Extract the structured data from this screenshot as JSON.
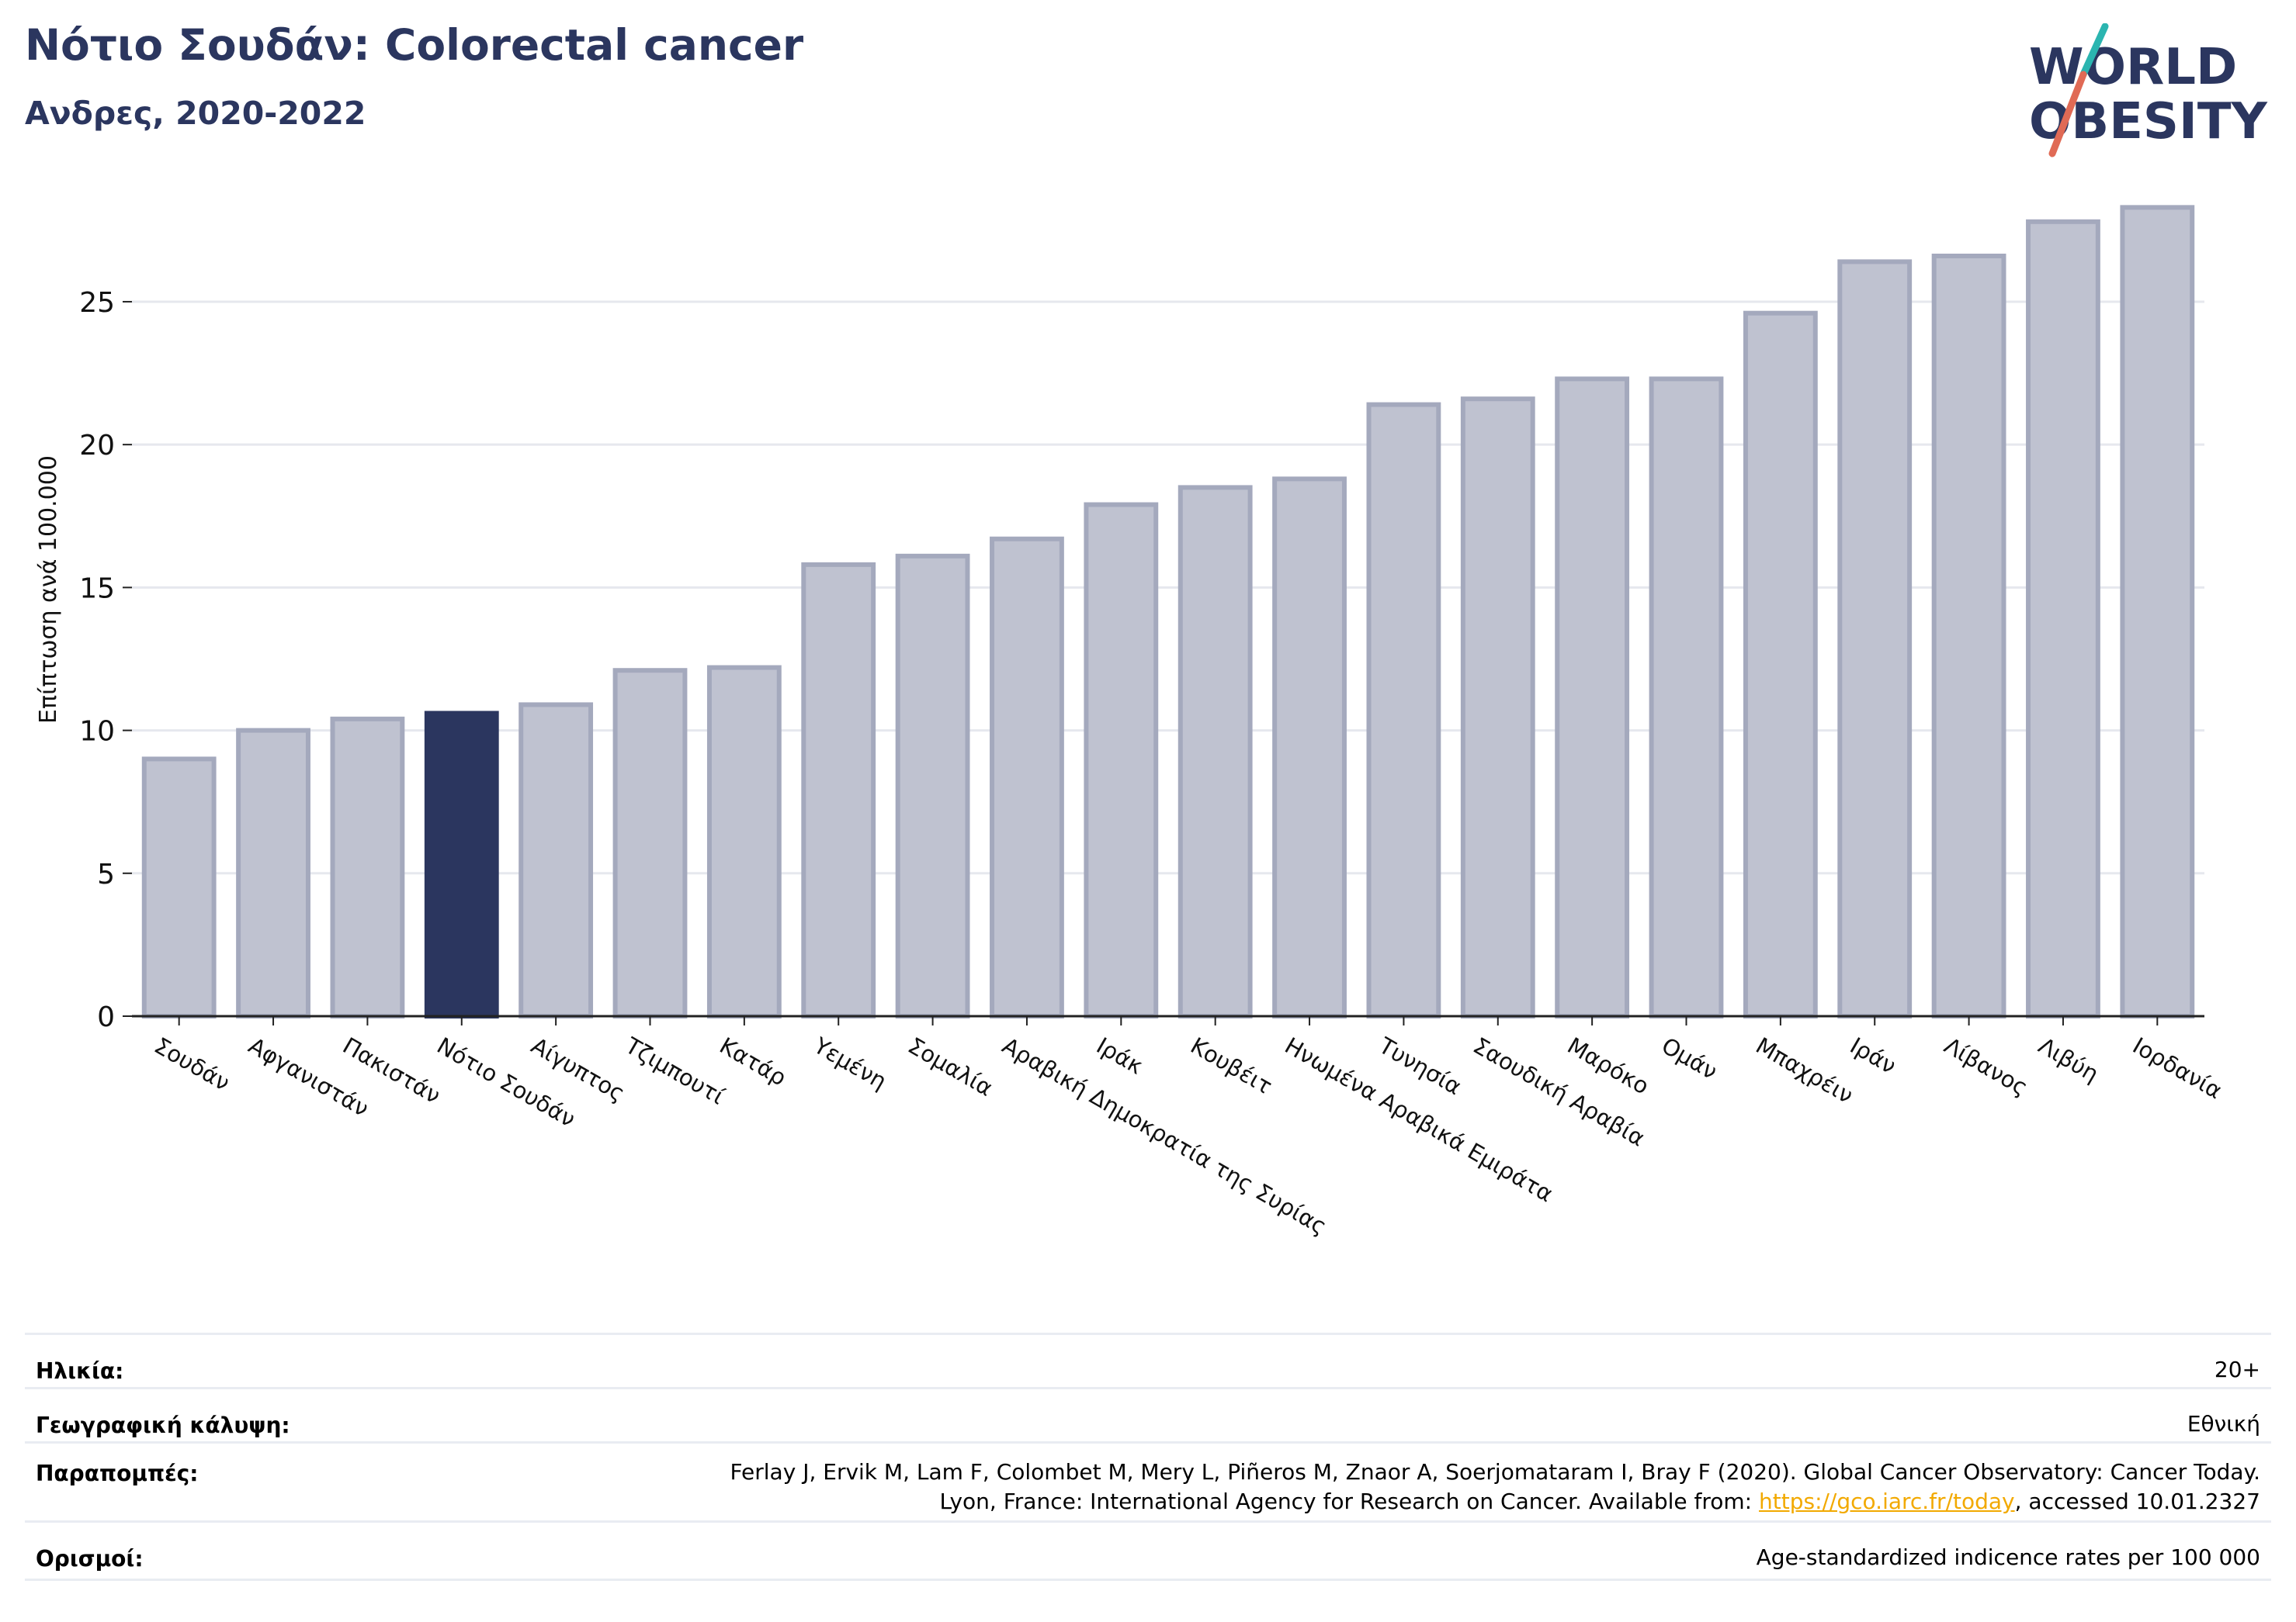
{
  "title": "Νότιο Σουδάν: Colorectal cancer",
  "subtitle": "Ανδρες, 2020-2022",
  "logo": {
    "line1": "WORLD",
    "line2": "OBESITY",
    "icon": "world-obesity-logo"
  },
  "colors": {
    "highlight": "#2b365f",
    "bar": "#bfc2d0",
    "bar_border": "#a4a9bd",
    "title": "#2b365f",
    "slash_teal": "#2bb5b0",
    "slash_red": "#e06a55"
  },
  "chart_data": {
    "type": "bar",
    "ylabel": "Επίπτωση ανά 100.000",
    "ylim": [
      0,
      28.5
    ],
    "yticks": [
      0,
      5,
      10,
      15,
      20,
      25
    ],
    "grid": true,
    "highlight": "Νότιο Σουδάν",
    "categories": [
      "Σουδάν",
      "Αφγανιστάν",
      "Πακιστάν",
      "Νότιο Σουδάν",
      "Αίγυπτος",
      "Τζιμπουτί",
      "Κατάρ",
      "Υεμένη",
      "Σομαλία",
      "Αραβική Δημοκρατία της Συρίας",
      "Ιράκ",
      "Κουβέιτ",
      "Ηνωμένα Αραβικά Εμιράτα",
      "Τυνησία",
      "Σαουδική Αραβία",
      "Μαρόκο",
      "Ομάν",
      "Μπαχρέιν",
      "Ιράν",
      "Λίβανος",
      "Λιβύη",
      "Ιορδανία"
    ],
    "values": [
      9.0,
      10.0,
      10.4,
      10.6,
      10.9,
      12.1,
      12.2,
      15.8,
      16.1,
      16.7,
      17.9,
      18.5,
      18.8,
      21.4,
      21.6,
      22.3,
      22.3,
      24.6,
      26.4,
      26.6,
      27.8,
      28.3
    ]
  },
  "info": [
    {
      "key": "Ηλικία:",
      "value": "20+"
    },
    {
      "key": "Γεωγραφική κάλυψη:",
      "value": "Εθνική"
    },
    {
      "key": "Παραπομπές:",
      "value_line1": "Ferlay J, Ervik M, Lam F, Colombet M, Mery L, Piñeros M, Znaor A, Soerjomataram I, Bray F (2020). Global Cancer Observatory: Cancer Today.",
      "value_line2_pre": "Lyon, France: International Agency for Research on Cancer. Available from: ",
      "link": "https://gco.iarc.fr/today",
      "value_line2_post": ", accessed 10.01.2327"
    },
    {
      "key": "Ορισμοί:",
      "value": "Age-standardized indicence rates per 100 000"
    }
  ]
}
